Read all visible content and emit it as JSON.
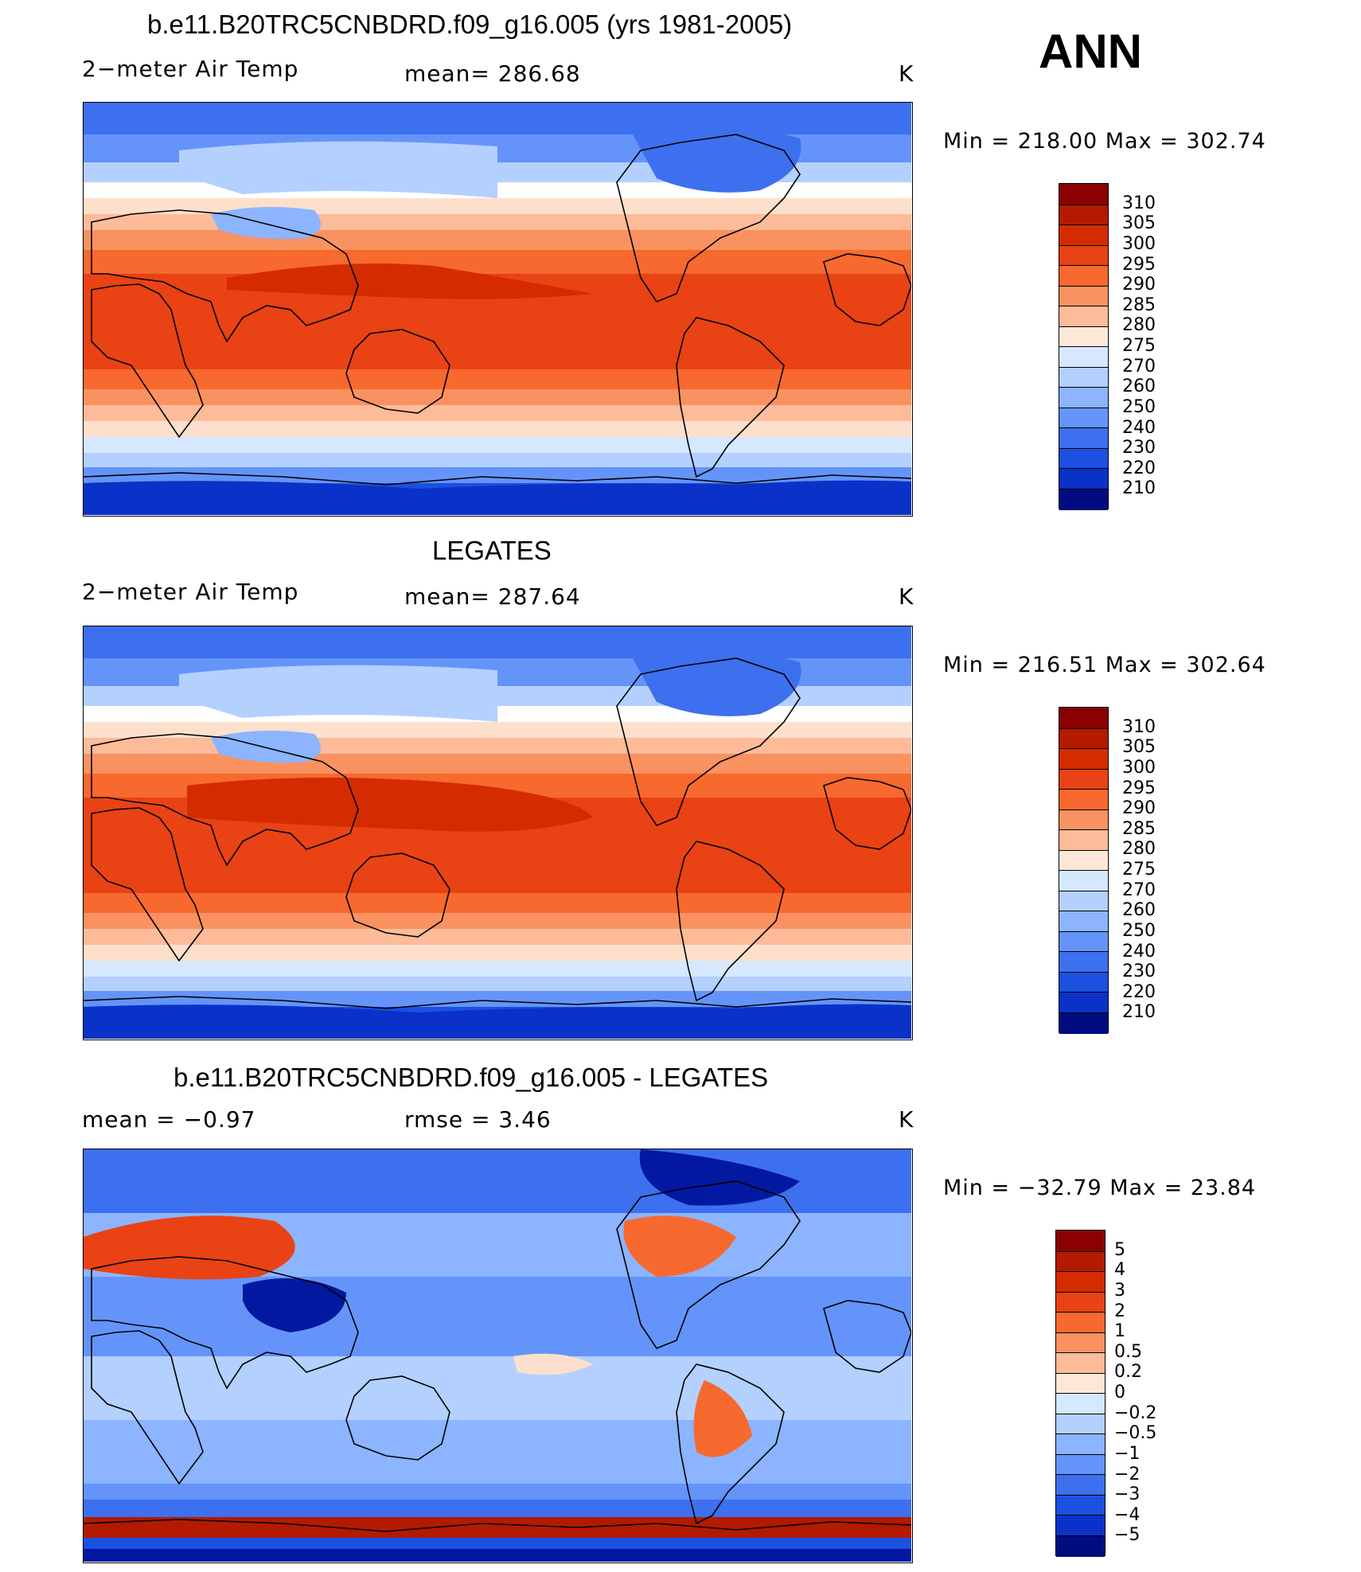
{
  "header": {
    "corner_label": "ANN"
  },
  "panels": [
    {
      "title": "b.e11.B20TRC5CNBDRD.f09_g16.005 (yrs 1981-2005)",
      "left_label": "2−meter Air Temp",
      "center_label": "mean=  286.68",
      "unit": "K",
      "minmax": "Min  =  218.00  Max  =  302.74",
      "scheme": "abs",
      "colorbar_labels": [
        "310",
        "305",
        "300",
        "295",
        "290",
        "285",
        "280",
        "275",
        "270",
        "260",
        "250",
        "240",
        "230",
        "220",
        "210"
      ]
    },
    {
      "title": "LEGATES",
      "left_label": "2−meter Air Temp",
      "center_label": "mean=  287.64",
      "unit": "K",
      "minmax": "Min  =  216.51  Max  =  302.64",
      "scheme": "abs",
      "colorbar_labels": [
        "310",
        "305",
        "300",
        "295",
        "290",
        "285",
        "280",
        "275",
        "270",
        "260",
        "250",
        "240",
        "230",
        "220",
        "210"
      ]
    },
    {
      "title": "b.e11.B20TRC5CNBDRD.f09_g16.005 - LEGATES",
      "left_label": "mean  =    −0.97",
      "center_label": "rmse  =     3.46",
      "unit": "K",
      "minmax": "Min  =  −32.79  Max  =    23.84",
      "scheme": "diff",
      "colorbar_labels": [
        "5",
        "4",
        "3",
        "2",
        "1",
        "0.5",
        "0.2",
        "0",
        "−0.2",
        "−0.5",
        "−1",
        "−2",
        "−3",
        "−4",
        "−5"
      ]
    }
  ],
  "colors": {
    "ramp": [
      "#8b0000",
      "#b31a00",
      "#d42c00",
      "#e94214",
      "#f7692e",
      "#f99260",
      "#fdbb99",
      "#fde0cc",
      "#ffffff",
      "#d6e8ff",
      "#b4d0ff",
      "#8cb4ff",
      "#6494fa",
      "#3d70ee",
      "#1c50e0",
      "#0a32c8",
      "#0218a0",
      "#000c80"
    ],
    "abs_cbar": [
      "#8b0000",
      "#b31a00",
      "#d42c00",
      "#e94214",
      "#f7692e",
      "#f99260",
      "#fdbb99",
      "#fde8d8",
      "#d6e8ff",
      "#b4d0ff",
      "#8cb4ff",
      "#6494fa",
      "#3d70ee",
      "#1c50e0",
      "#0a32c8",
      "#000c80"
    ],
    "diff_cbar": [
      "#8b0000",
      "#b31a00",
      "#d42c00",
      "#e94214",
      "#f7692e",
      "#f99260",
      "#fdbb99",
      "#fde8d8",
      "#d6e8ff",
      "#b4d0ff",
      "#8cb4ff",
      "#6494fa",
      "#3d70ee",
      "#1c50e0",
      "#0a32c8",
      "#000c80"
    ]
  }
}
